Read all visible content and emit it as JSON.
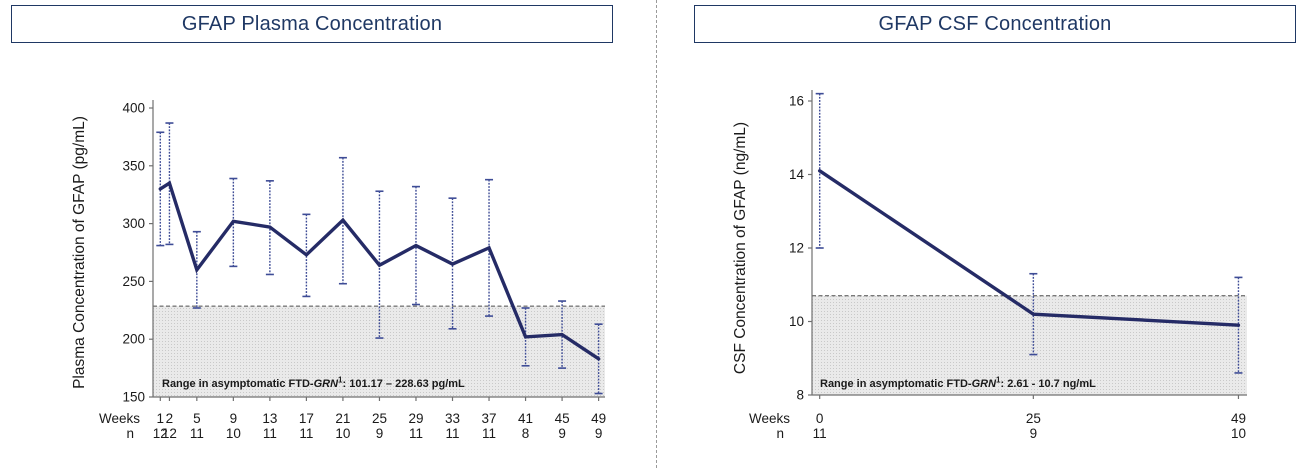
{
  "colors": {
    "line": "#252B66",
    "error_bar": "#3E4C96",
    "axis": "#707070",
    "tick_text": "#1a1a1a",
    "band_fill": "#eaeaea",
    "band_dot": "#c9c9c9",
    "dashed_range_line": "#4d4d4d",
    "title_navy": "#1F3864"
  },
  "chart_data": [
    {
      "id": "plasma",
      "type": "line",
      "title": "GFAP Plasma Concentration",
      "ylabel": "Plasma Concentration of GFAP (pg/mL)",
      "x_header": "Weeks",
      "n_header": "n",
      "weeks": [
        1,
        2,
        5,
        9,
        13,
        17,
        21,
        25,
        29,
        33,
        37,
        41,
        45,
        49
      ],
      "n": [
        12,
        12,
        11,
        10,
        11,
        11,
        10,
        9,
        11,
        11,
        11,
        8,
        9,
        9
      ],
      "values": [
        330,
        335,
        260,
        302,
        297,
        273,
        303,
        264,
        281,
        265,
        279,
        202,
        204,
        183
      ],
      "err_high": [
        379,
        387,
        293,
        339,
        337,
        308,
        357,
        328,
        332,
        322,
        338,
        227,
        233,
        213
      ],
      "err_low": [
        281,
        282,
        227,
        263,
        256,
        237,
        248,
        201,
        230,
        209,
        220,
        177,
        175,
        153
      ],
      "ylim": [
        150,
        400
      ],
      "yticks": [
        150,
        200,
        250,
        300,
        350,
        400
      ],
      "xlim": [
        0.2,
        49.7
      ],
      "band": {
        "from": 150,
        "to": 228.63
      },
      "legend": "none",
      "grid": false,
      "annotation": {
        "prefix": "Range in asymptomatic FTD-",
        "italic": "GRN",
        "sup": "1",
        "rest": ": 101.17 – 228.63 pg/mL"
      }
    },
    {
      "id": "csf",
      "type": "line",
      "title": "GFAP CSF Concentration",
      "ylabel": "CSF Concentration of GFAP (ng/mL)",
      "x_header": "Weeks",
      "n_header": "n",
      "weeks": [
        0,
        25,
        49
      ],
      "n": [
        11,
        9,
        10
      ],
      "values": [
        14.1,
        10.2,
        9.9
      ],
      "err_high": [
        16.2,
        11.3,
        11.2
      ],
      "err_low": [
        12.0,
        9.1,
        8.6
      ],
      "ylim": [
        8,
        16
      ],
      "yticks": [
        8,
        10,
        12,
        14,
        16
      ],
      "xlim": [
        -0.9,
        50
      ],
      "band": {
        "from": 8,
        "to": 10.7
      },
      "legend": "none",
      "grid": false,
      "annotation": {
        "prefix": "Range in asymptomatic FTD-",
        "italic": "GRN",
        "sup": "1",
        "rest": ": 2.61 - 10.7 ng/mL"
      }
    }
  ]
}
